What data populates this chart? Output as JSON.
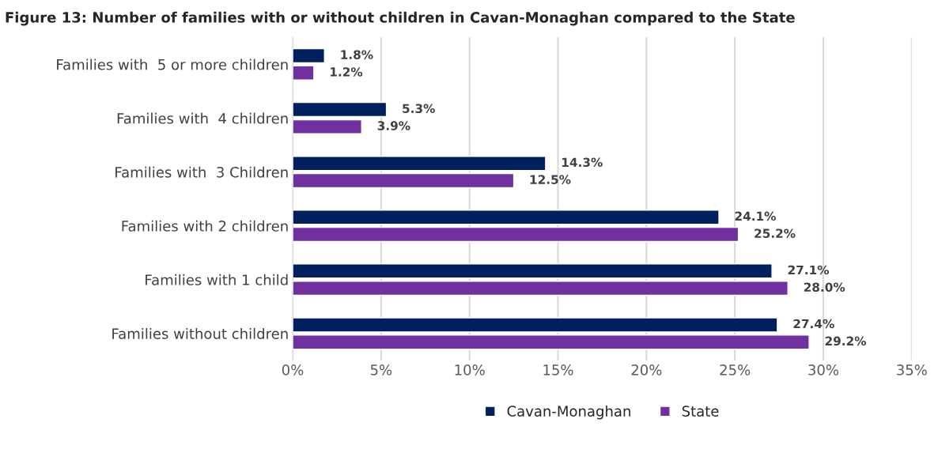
{
  "chart_data": {
    "type": "bar",
    "orientation": "horizontal",
    "title": "Figure 13: Number of families with or without children in Cavan-Monaghan compared to the State",
    "categories": [
      "Families with  5 or more children",
      "Families with  4 children",
      "Families with  3 Children",
      "Families with 2 children",
      "Families with 1 child",
      "Families without children"
    ],
    "series": [
      {
        "name": "Cavan-Monaghan",
        "color": "#002060",
        "values": [
          1.8,
          5.3,
          14.3,
          24.1,
          27.1,
          27.4
        ],
        "value_labels": [
          "1.8%",
          "5.3%",
          "14.3%",
          "24.1%",
          "27.1%",
          "27.4%"
        ]
      },
      {
        "name": "State",
        "color": "#7030a0",
        "values": [
          1.2,
          3.9,
          12.5,
          25.2,
          28.0,
          29.2
        ],
        "value_labels": [
          "1.2%",
          "3.9%",
          "12.5%",
          "25.2%",
          "28.0%",
          "29.2%"
        ]
      }
    ],
    "xlim": [
      0,
      35
    ],
    "xticks": [
      {
        "value": 0,
        "label": "0%"
      },
      {
        "value": 5,
        "label": "5%"
      },
      {
        "value": 10,
        "label": "10%"
      },
      {
        "value": 15,
        "label": "15%"
      },
      {
        "value": 20,
        "label": "20%"
      },
      {
        "value": 25,
        "label": "25%"
      },
      {
        "value": 30,
        "label": "30%"
      },
      {
        "value": 35,
        "label": "35%"
      }
    ],
    "grid": "x",
    "legend": "bottom"
  }
}
